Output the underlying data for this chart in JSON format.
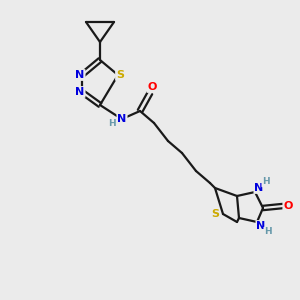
{
  "bg_color": "#ebebeb",
  "bond_color": "#1a1a1a",
  "bond_width": 1.6,
  "atom_colors": {
    "N": "#0000dd",
    "S": "#ccaa00",
    "O": "#ff0000",
    "H": "#6699aa",
    "C": "#1a1a1a"
  },
  "font_size": 8.0,
  "fig_size": [
    3.0,
    3.0
  ],
  "dpi": 100
}
